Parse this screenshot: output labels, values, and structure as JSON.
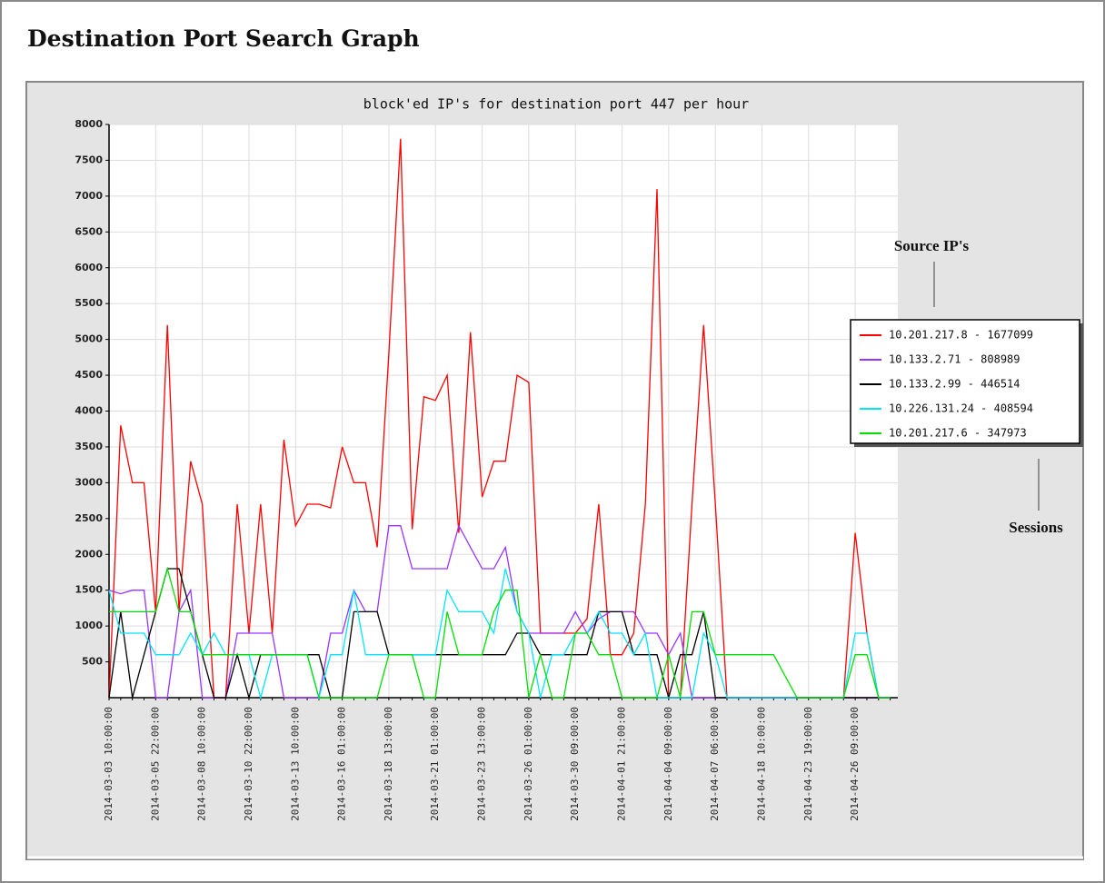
{
  "heading": "Destination Port Search Graph",
  "chart_data": {
    "type": "line",
    "title": "block'ed IP's for destination port 447 per hour",
    "categories": [
      "2014-03-03 10:00:00",
      null,
      null,
      null,
      "2014-03-05 22:00:00",
      null,
      null,
      null,
      "2014-03-08 10:00:00",
      null,
      null,
      null,
      "2014-03-10 22:00:00",
      null,
      null,
      null,
      "2014-03-13 10:00:00",
      null,
      null,
      null,
      "2014-03-16 01:00:00",
      null,
      null,
      null,
      "2014-03-18 13:00:00",
      null,
      null,
      null,
      "2014-03-21 01:00:00",
      null,
      null,
      null,
      "2014-03-23 13:00:00",
      null,
      null,
      null,
      "2014-03-26 01:00:00",
      null,
      null,
      null,
      "2014-03-30 09:00:00",
      null,
      null,
      null,
      "2014-04-01 21:00:00",
      null,
      null,
      null,
      "2014-04-04 09:00:00",
      null,
      null,
      null,
      "2014-04-07 06:00:00",
      null,
      null,
      null,
      "2014-04-18 10:00:00",
      null,
      null,
      null,
      "2014-04-23 19:00:00",
      null,
      null,
      null,
      "2014-04-26 09:00:00",
      null,
      null,
      null
    ],
    "ylim": [
      0,
      8000
    ],
    "yticks": [
      500,
      1000,
      1500,
      2000,
      2500,
      3000,
      3500,
      4000,
      4500,
      5000,
      5500,
      6000,
      6500,
      7000,
      7500,
      8000
    ],
    "grid": true,
    "legend": "right",
    "annotations": [
      "Source IP's",
      "Sessions"
    ],
    "series": [
      {
        "name": "10.201.217.8 - 1677099",
        "color": "#ff0000",
        "values": [
          0,
          3800,
          3000,
          3000,
          1200,
          5200,
          1200,
          3300,
          2700,
          0,
          0,
          2700,
          900,
          2700,
          900,
          3600,
          2400,
          2700,
          2700,
          2650,
          3500,
          3000,
          3000,
          2100,
          4800,
          7800,
          2350,
          4200,
          4150,
          4500,
          2300,
          5100,
          2800,
          3300,
          3300,
          4500,
          4400,
          900,
          900,
          900,
          900,
          1100,
          2700,
          600,
          600,
          900,
          2700,
          7100,
          0,
          0,
          2700,
          5200,
          2700,
          0,
          0,
          0,
          0,
          0,
          0,
          0,
          0,
          0,
          0,
          0,
          2300,
          900,
          0,
          0
        ]
      },
      {
        "name": "10.133.2.71 - 808989",
        "color": "#9933ff",
        "values": [
          1500,
          1450,
          1500,
          1500,
          0,
          0,
          1200,
          1500,
          0,
          0,
          0,
          900,
          900,
          900,
          900,
          0,
          0,
          0,
          0,
          900,
          900,
          1500,
          1200,
          1200,
          2400,
          2400,
          1800,
          1800,
          1800,
          1800,
          2400,
          2100,
          1800,
          1800,
          2100,
          1200,
          900,
          900,
          900,
          900,
          1200,
          900,
          1100,
          1200,
          1200,
          1200,
          900,
          900,
          600,
          900,
          0,
          0,
          0,
          0,
          0,
          0,
          0,
          0,
          0,
          0,
          0,
          0,
          0,
          0,
          0,
          0,
          0,
          0
        ]
      },
      {
        "name": "10.133.2.99 - 446514",
        "color": "#000000",
        "values": [
          0,
          1200,
          0,
          600,
          1200,
          1800,
          1800,
          1200,
          600,
          0,
          0,
          600,
          0,
          600,
          600,
          600,
          600,
          600,
          600,
          0,
          0,
          1200,
          1200,
          1200,
          600,
          600,
          600,
          600,
          600,
          600,
          600,
          600,
          600,
          600,
          600,
          900,
          900,
          600,
          600,
          600,
          600,
          600,
          1200,
          1200,
          1200,
          600,
          600,
          600,
          0,
          600,
          600,
          1200,
          0,
          0,
          0,
          0,
          0,
          0,
          0,
          0,
          0,
          0,
          0,
          0,
          0,
          0,
          0,
          0
        ]
      },
      {
        "name": "10.226.131.24 - 408594",
        "color": "#00e5ff",
        "values": [
          1500,
          900,
          900,
          900,
          600,
          600,
          600,
          900,
          600,
          900,
          600,
          600,
          600,
          0,
          600,
          600,
          600,
          600,
          0,
          600,
          600,
          1500,
          600,
          600,
          600,
          600,
          600,
          600,
          600,
          1500,
          1200,
          1200,
          1200,
          900,
          1800,
          1200,
          900,
          0,
          600,
          600,
          900,
          900,
          1200,
          900,
          900,
          600,
          900,
          0,
          0,
          0,
          0,
          900,
          600,
          0,
          0,
          0,
          0,
          0,
          0,
          0,
          0,
          0,
          0,
          0,
          900,
          900,
          0,
          0
        ]
      },
      {
        "name": "10.201.217.6 - 347973",
        "color": "#00e000",
        "values": [
          1200,
          1200,
          1200,
          1200,
          1200,
          1800,
          1200,
          1200,
          600,
          600,
          600,
          600,
          600,
          600,
          600,
          600,
          600,
          600,
          0,
          0,
          0,
          0,
          0,
          0,
          600,
          600,
          600,
          0,
          0,
          1200,
          600,
          600,
          600,
          1200,
          1500,
          1500,
          0,
          600,
          0,
          0,
          900,
          900,
          600,
          600,
          0,
          0,
          0,
          0,
          600,
          0,
          1200,
          1200,
          600,
          600,
          600,
          600,
          600,
          600,
          300,
          0,
          0,
          0,
          0,
          0,
          600,
          600,
          0,
          0
        ]
      }
    ]
  }
}
